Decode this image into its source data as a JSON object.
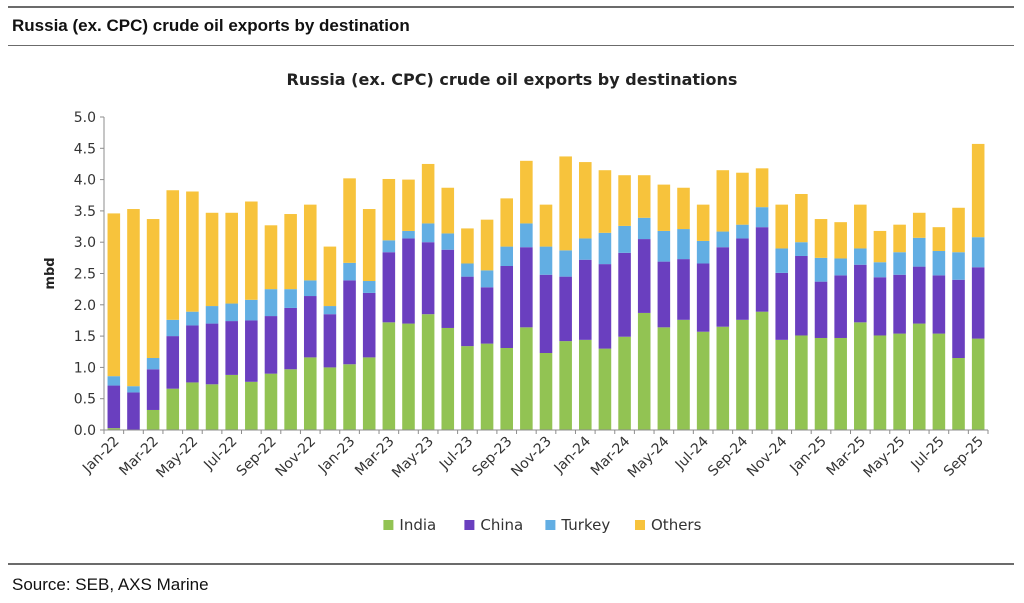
{
  "header": {
    "title": "Russia (ex. CPC) crude oil exports by destination"
  },
  "source": "Source: SEB, AXS Marine",
  "colors": {
    "India": "#92c353",
    "China": "#6a3fbf",
    "Turkey": "#62aee3",
    "Others": "#f7c33c"
  },
  "chart_data": {
    "type": "bar",
    "stacked": true,
    "title": "Russia (ex. CPC) crude oil exports by destinations",
    "xlabel": "",
    "ylabel": "mbd",
    "ylim": [
      0,
      5
    ],
    "yticks": [
      "0.0",
      "0.5",
      "1.0",
      "1.5",
      "2.0",
      "2.5",
      "3.0",
      "3.5",
      "4.0",
      "4.5",
      "5.0"
    ],
    "grid": false,
    "legend": "bottom",
    "tick_labels": [
      "Jan-22",
      "Mar-22",
      "May-22",
      "Jul-22",
      "Sep-22",
      "Nov-22",
      "Jan-23",
      "Mar-23",
      "May-23",
      "Jul-23",
      "Sep-23",
      "Nov-23",
      "Jan-24",
      "Mar-24",
      "May-24",
      "Jul-24",
      "Sep-24",
      "Nov-24",
      "Jan-25",
      "Mar-25",
      "May-25",
      "Jul-25",
      "Sep-25"
    ],
    "categories": [
      "Jan-22",
      "Feb-22",
      "Mar-22",
      "Apr-22",
      "May-22",
      "Jun-22",
      "Jul-22",
      "Aug-22",
      "Sep-22",
      "Oct-22",
      "Nov-22",
      "Dec-22",
      "Jan-23",
      "Feb-23",
      "Mar-23",
      "Apr-23",
      "May-23",
      "Jun-23",
      "Jul-23",
      "Aug-23",
      "Sep-23",
      "Oct-23",
      "Nov-23",
      "Dec-23",
      "Jan-24",
      "Feb-24",
      "Mar-24",
      "Apr-24",
      "May-24",
      "Jun-24",
      "Jul-24",
      "Aug-24",
      "Sep-24",
      "Oct-24",
      "Nov-24",
      "Dec-24",
      "Jan-25",
      "Feb-25",
      "Mar-25",
      "Apr-25",
      "May-25",
      "Jun-25",
      "Jul-25",
      "Aug-25",
      "Sep-25"
    ],
    "series": [
      {
        "name": "India",
        "values": [
          0.03,
          0.0,
          0.32,
          0.66,
          0.76,
          0.73,
          0.88,
          0.77,
          0.9,
          0.97,
          1.16,
          1.0,
          1.05,
          1.16,
          1.72,
          1.7,
          1.85,
          1.63,
          1.34,
          1.38,
          1.31,
          1.64,
          1.23,
          1.42,
          1.44,
          1.3,
          1.49,
          1.87,
          1.64,
          1.76,
          1.57,
          1.65,
          1.76,
          1.89,
          1.44,
          1.51,
          1.47,
          1.47,
          1.72,
          1.51,
          1.54,
          1.7,
          1.54,
          1.15,
          1.46
        ]
      },
      {
        "name": "China",
        "values": [
          0.68,
          0.6,
          0.65,
          0.84,
          0.91,
          0.97,
          0.86,
          0.98,
          0.92,
          0.98,
          0.98,
          0.85,
          1.34,
          1.03,
          1.12,
          1.36,
          1.15,
          1.25,
          1.11,
          0.9,
          1.31,
          1.28,
          1.25,
          1.03,
          1.28,
          1.35,
          1.34,
          1.18,
          1.05,
          0.97,
          1.09,
          1.27,
          1.3,
          1.35,
          1.07,
          1.27,
          0.9,
          1.0,
          0.92,
          0.93,
          0.94,
          0.91,
          0.93,
          1.25,
          1.14
        ]
      },
      {
        "name": "Turkey",
        "values": [
          0.15,
          0.1,
          0.18,
          0.26,
          0.22,
          0.28,
          0.28,
          0.33,
          0.43,
          0.3,
          0.25,
          0.13,
          0.28,
          0.19,
          0.19,
          0.12,
          0.3,
          0.26,
          0.21,
          0.27,
          0.31,
          0.38,
          0.45,
          0.42,
          0.34,
          0.5,
          0.43,
          0.34,
          0.49,
          0.48,
          0.36,
          0.25,
          0.22,
          0.32,
          0.39,
          0.22,
          0.38,
          0.27,
          0.26,
          0.24,
          0.36,
          0.46,
          0.39,
          0.44,
          0.48
        ]
      },
      {
        "name": "Others",
        "values": [
          2.6,
          2.83,
          2.22,
          2.07,
          1.92,
          1.49,
          1.45,
          1.57,
          1.02,
          1.2,
          1.21,
          0.95,
          1.35,
          1.15,
          0.98,
          0.82,
          0.95,
          0.73,
          0.56,
          0.81,
          0.77,
          1.0,
          0.67,
          1.5,
          1.22,
          1.0,
          0.81,
          0.68,
          0.74,
          0.66,
          0.58,
          0.98,
          0.83,
          0.62,
          0.7,
          0.77,
          0.62,
          0.58,
          0.7,
          0.5,
          0.44,
          0.4,
          0.38,
          0.71,
          1.49
        ]
      }
    ]
  }
}
